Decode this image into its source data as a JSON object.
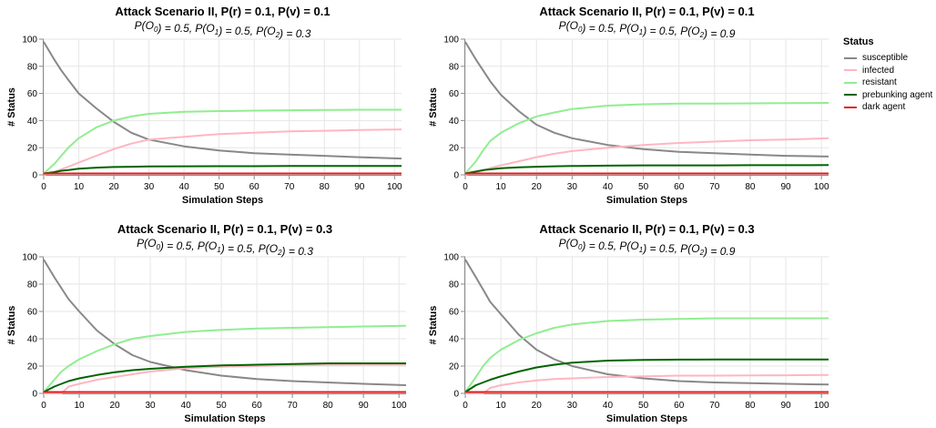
{
  "legend": {
    "title": "Status",
    "items": [
      {
        "label": "susceptible",
        "color": "#888888"
      },
      {
        "label": "infected",
        "color": "#ffb6c1"
      },
      {
        "label": "resistant",
        "color": "#90ee90"
      },
      {
        "label": "prebunking agent",
        "color": "#006400"
      },
      {
        "label": "dark agent",
        "color": "#e41a1c"
      }
    ]
  },
  "chart_data": [
    {
      "type": "line",
      "title": "Attack Scenario II, P(r) = 0.1, P(v) = 0.1",
      "subtitle_parts": [
        [
          "P(O",
          false
        ],
        [
          "0",
          true
        ],
        [
          ") = 0.5, P(O",
          false
        ],
        [
          "1",
          true
        ],
        [
          ") = 0.5, P(O",
          false
        ],
        [
          "2",
          true
        ],
        [
          ") = 0.3",
          false
        ]
      ],
      "xlabel": "Simulation Steps",
      "ylabel": "# Status",
      "xlim": [
        0,
        102
      ],
      "ylim": [
        0,
        100
      ],
      "x_ticks": [
        0,
        10,
        20,
        30,
        40,
        50,
        60,
        70,
        80,
        90,
        100
      ],
      "y_ticks": [
        0,
        20,
        40,
        60,
        80,
        100
      ],
      "grid": true,
      "x": [
        0,
        3,
        5,
        7,
        10,
        15,
        20,
        25,
        30,
        40,
        50,
        60,
        70,
        80,
        90,
        102
      ],
      "series": [
        {
          "name": "susceptible",
          "values": [
            98,
            85,
            77,
            70,
            60,
            49,
            39,
            31,
            26,
            21,
            18,
            16,
            15,
            14,
            13,
            12
          ]
        },
        {
          "name": "infected",
          "values": [
            0,
            2,
            4,
            6,
            9,
            14,
            19,
            23,
            26,
            28,
            30,
            31,
            32,
            32.5,
            33,
            33.5
          ]
        },
        {
          "name": "resistant",
          "values": [
            1,
            8,
            14,
            20,
            27,
            35,
            40,
            43,
            45,
            46.5,
            47,
            47.3,
            47.6,
            47.8,
            48,
            48
          ]
        },
        {
          "name": "prebunking agent",
          "values": [
            1,
            2,
            3,
            3.5,
            4.5,
            5.3,
            5.8,
            6,
            6.2,
            6.3,
            6.4,
            6.4,
            6.5,
            6.5,
            6.5,
            6.5
          ]
        },
        {
          "name": "dark agent",
          "values": [
            1,
            1,
            1,
            1,
            1,
            1,
            1,
            1,
            1,
            1,
            1,
            1,
            1,
            1,
            1,
            1
          ]
        }
      ]
    },
    {
      "type": "line",
      "title": "Attack Scenario II, P(r) = 0.1, P(v) = 0.1",
      "subtitle_parts": [
        [
          "P(O",
          false
        ],
        [
          "0",
          true
        ],
        [
          ") = 0.5, P(O",
          false
        ],
        [
          "1",
          true
        ],
        [
          ") = 0.5, P(O",
          false
        ],
        [
          "2",
          true
        ],
        [
          ") = 0.9",
          false
        ]
      ],
      "xlabel": "Simulation Steps",
      "ylabel": "# Status",
      "xlim": [
        0,
        102
      ],
      "ylim": [
        0,
        100
      ],
      "x_ticks": [
        0,
        10,
        20,
        30,
        40,
        50,
        60,
        70,
        80,
        90,
        100
      ],
      "y_ticks": [
        0,
        20,
        40,
        60,
        80,
        100
      ],
      "grid": true,
      "x": [
        0,
        3,
        5,
        7,
        10,
        15,
        20,
        25,
        30,
        40,
        50,
        60,
        70,
        80,
        90,
        102
      ],
      "series": [
        {
          "name": "susceptible",
          "values": [
            98,
            85,
            77,
            69,
            59,
            47,
            37,
            31,
            27,
            22,
            19,
            17,
            16,
            15,
            14,
            13.5
          ]
        },
        {
          "name": "infected",
          "values": [
            0,
            2,
            3,
            5,
            7,
            10,
            13,
            15.5,
            17.5,
            20,
            22,
            23.5,
            24.5,
            25.5,
            26,
            27
          ]
        },
        {
          "name": "resistant",
          "values": [
            1,
            10,
            18,
            25,
            31,
            38,
            43,
            46,
            48.5,
            51,
            52,
            52.5,
            52.5,
            52.7,
            52.8,
            53
          ]
        },
        {
          "name": "prebunking agent",
          "values": [
            1,
            2.5,
            3.5,
            4,
            4.8,
            5.5,
            6,
            6.3,
            6.5,
            6.8,
            7,
            7,
            7,
            7.1,
            7.1,
            7.2
          ]
        },
        {
          "name": "dark agent",
          "values": [
            1,
            1,
            1,
            1,
            1,
            1,
            1,
            1,
            1,
            1,
            1,
            1,
            1,
            1,
            1,
            1
          ]
        }
      ]
    },
    {
      "type": "line",
      "title": "Attack Scenario II, P(r) = 0.1, P(v) = 0.3",
      "subtitle_parts": [
        [
          "P(O",
          false
        ],
        [
          "0",
          true
        ],
        [
          ") = 0.5, P(O",
          false
        ],
        [
          "1",
          true
        ],
        [
          ") = 0.5, P(O",
          false
        ],
        [
          "2",
          true
        ],
        [
          ") = 0.3",
          false
        ]
      ],
      "xlabel": "Simulation Steps",
      "ylabel": "# Status",
      "xlim": [
        0,
        102
      ],
      "ylim": [
        0,
        100
      ],
      "x_ticks": [
        0,
        10,
        20,
        30,
        40,
        50,
        60,
        70,
        80,
        90,
        100
      ],
      "y_ticks": [
        0,
        20,
        40,
        60,
        80,
        100
      ],
      "grid": true,
      "x": [
        0,
        3,
        5,
        7,
        10,
        15,
        20,
        25,
        30,
        40,
        50,
        60,
        70,
        80,
        90,
        102
      ],
      "series": [
        {
          "name": "susceptible",
          "values": [
            98,
            85,
            77,
            69,
            60,
            46,
            36,
            28,
            23,
            17,
            13,
            10.5,
            9,
            8,
            7,
            6
          ]
        },
        {
          "name": "infected",
          "values": [
            0,
            0,
            0,
            5,
            7,
            10,
            12,
            14,
            16,
            18.5,
            19.5,
            20,
            20.5,
            20.8,
            21,
            21
          ]
        },
        {
          "name": "resistant",
          "values": [
            1,
            10,
            16,
            20,
            25,
            31,
            36,
            40,
            42,
            45,
            46.5,
            47.5,
            48,
            48.5,
            49,
            49.5
          ]
        },
        {
          "name": "prebunking agent",
          "values": [
            1,
            5,
            7,
            9,
            11,
            13.5,
            15.5,
            17,
            18,
            19.5,
            20.5,
            21,
            21.5,
            22,
            22,
            22
          ]
        },
        {
          "name": "dark agent",
          "values": [
            1,
            1,
            1,
            1,
            1,
            1,
            1,
            1,
            1,
            1,
            1,
            1,
            1,
            1,
            1,
            1
          ]
        }
      ]
    },
    {
      "type": "line",
      "title": "Attack Scenario II, P(r) = 0.1, P(v) = 0.3",
      "subtitle_parts": [
        [
          "P(O",
          false
        ],
        [
          "0",
          true
        ],
        [
          ") = 0.5, P(O",
          false
        ],
        [
          "1",
          true
        ],
        [
          ") = 0.5, P(O",
          false
        ],
        [
          "2",
          true
        ],
        [
          ") = 0.9",
          false
        ]
      ],
      "xlabel": "Simulation Steps",
      "ylabel": "# Status",
      "xlim": [
        0,
        102
      ],
      "ylim": [
        0,
        100
      ],
      "x_ticks": [
        0,
        10,
        20,
        30,
        40,
        50,
        60,
        70,
        80,
        90,
        100
      ],
      "y_ticks": [
        0,
        20,
        40,
        60,
        80,
        100
      ],
      "grid": true,
      "x": [
        0,
        3,
        5,
        7,
        10,
        15,
        20,
        25,
        30,
        40,
        50,
        60,
        70,
        80,
        90,
        102
      ],
      "series": [
        {
          "name": "susceptible",
          "values": [
            98,
            85,
            76,
            67,
            58,
            43,
            32,
            25,
            20,
            14,
            11,
            9,
            8,
            7.5,
            7,
            6.5
          ]
        },
        {
          "name": "infected",
          "values": [
            0,
            0,
            0,
            4,
            6,
            8,
            9.5,
            10.5,
            11,
            12,
            12.5,
            13,
            13,
            13.2,
            13.3,
            13.5
          ]
        },
        {
          "name": "resistant",
          "values": [
            1,
            12,
            20,
            26,
            32,
            39,
            44,
            48,
            50.5,
            53,
            54,
            54.5,
            55,
            55,
            55,
            55
          ]
        },
        {
          "name": "prebunking agent",
          "values": [
            1,
            6,
            8,
            10,
            12.5,
            16,
            19,
            21,
            22.5,
            24,
            24.5,
            24.7,
            24.8,
            24.8,
            24.8,
            24.8
          ]
        },
        {
          "name": "dark agent",
          "values": [
            1,
            1,
            1,
            1,
            1,
            1,
            1,
            1,
            1,
            1,
            1,
            1,
            1,
            1,
            1,
            1
          ]
        }
      ]
    }
  ]
}
